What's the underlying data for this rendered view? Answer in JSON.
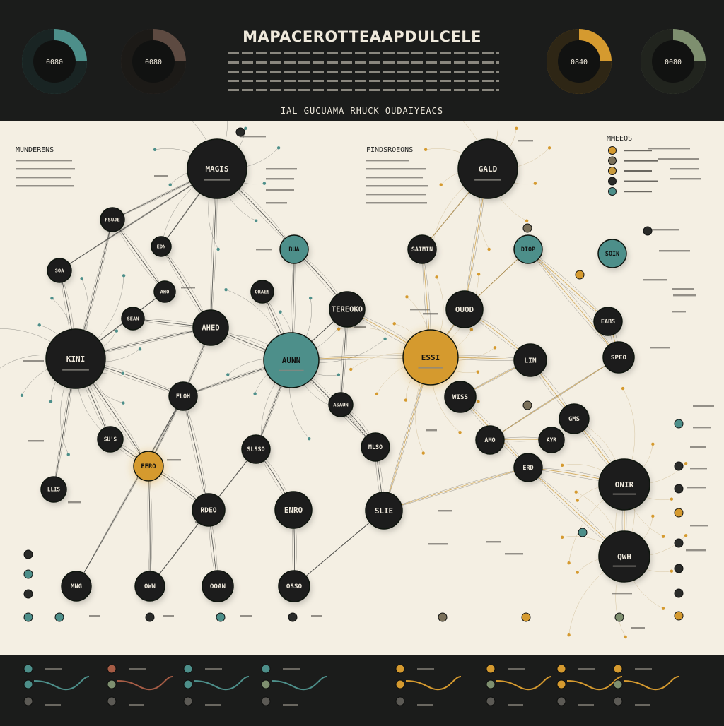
{
  "header": {
    "title": "MAPACEROTTEAAPDULCELE",
    "subtitle": "IAL GUCUAMA RHUCK OUDAIYEACS",
    "badges": [
      {
        "label": "0080",
        "color": "#4d8f8a"
      },
      {
        "label": "0080",
        "color": "#5d4a41"
      },
      {
        "label": "0840",
        "color": "#d59a2f"
      },
      {
        "label": "0080",
        "color": "#7e8f6f"
      }
    ]
  },
  "panels": {
    "left_title": "MUNDERENS",
    "center_title": "FINDSROEONS",
    "legend_title": "MMEEOS",
    "legend": [
      {
        "color": "#d59a2f"
      },
      {
        "color": "#7a705a"
      },
      {
        "color": "#c99a3c"
      },
      {
        "color": "#2a2b29"
      },
      {
        "color": "#4d8f8a"
      }
    ]
  },
  "palette": {
    "node": "#1c1d1c",
    "teal": "#4d8f8a",
    "orange": "#d59a2f",
    "olive": "#7e8f6f",
    "rust": "#a65c45",
    "paper": "#f4efe3"
  },
  "nodes": [
    {
      "id": "n1",
      "label": "MAGIS",
      "color": "dark"
    },
    {
      "id": "n2",
      "label": "FSUJE",
      "color": "dark"
    },
    {
      "id": "n3",
      "label": "EDN",
      "color": "dark"
    },
    {
      "id": "n4",
      "label": "SOA",
      "color": "dark"
    },
    {
      "id": "n5",
      "label": "AHO",
      "color": "dark"
    },
    {
      "id": "n6",
      "label": "BUA",
      "color": "teal"
    },
    {
      "id": "n7",
      "label": "SEAN",
      "color": "dark"
    },
    {
      "id": "n8",
      "label": "ORAES",
      "color": "dark"
    },
    {
      "id": "n9",
      "label": "AHED",
      "color": "dark"
    },
    {
      "id": "n10",
      "label": "KINI",
      "color": "dark"
    },
    {
      "id": "n11",
      "label": "TEREOKO",
      "color": "dark"
    },
    {
      "id": "n12",
      "label": "AUNN",
      "color": "teal"
    },
    {
      "id": "n13",
      "label": "FLOH",
      "color": "dark"
    },
    {
      "id": "n14",
      "label": "ASAUN",
      "color": "dark"
    },
    {
      "id": "n15",
      "label": "SU'S",
      "color": "dark"
    },
    {
      "id": "n16",
      "label": "SLSSO",
      "color": "dark"
    },
    {
      "id": "n17",
      "label": "MLSO",
      "color": "dark"
    },
    {
      "id": "n18",
      "label": "EERO",
      "color": "orange"
    },
    {
      "id": "n19",
      "label": "LLIS",
      "color": "dark"
    },
    {
      "id": "n20",
      "label": "RDEO",
      "color": "dark"
    },
    {
      "id": "n21",
      "label": "ENRO",
      "color": "dark"
    },
    {
      "id": "n22",
      "label": "SLIE",
      "color": "dark"
    },
    {
      "id": "n23",
      "label": "MNG",
      "color": "dark"
    },
    {
      "id": "n24",
      "label": "OWN",
      "color": "dark"
    },
    {
      "id": "n25",
      "label": "OOAN",
      "color": "dark"
    },
    {
      "id": "n26",
      "label": "OSSO",
      "color": "dark"
    },
    {
      "id": "n27",
      "label": "ESSI",
      "color": "orange"
    },
    {
      "id": "n28",
      "label": "SAIMIN",
      "color": "dark"
    },
    {
      "id": "n29",
      "label": "GALD",
      "color": "dark"
    },
    {
      "id": "n30",
      "label": "OUOD",
      "color": "dark"
    },
    {
      "id": "n31",
      "label": "DIOP",
      "color": "teal"
    },
    {
      "id": "n32",
      "label": "SOIN",
      "color": "teal"
    },
    {
      "id": "n33",
      "label": "EABS",
      "color": "dark"
    },
    {
      "id": "n34",
      "label": "LIN",
      "color": "dark"
    },
    {
      "id": "n35",
      "label": "SPEO",
      "color": "dark"
    },
    {
      "id": "n36",
      "label": "WISS",
      "color": "dark"
    },
    {
      "id": "n37",
      "label": "AMO",
      "color": "dark"
    },
    {
      "id": "n38",
      "label": "AYR",
      "color": "dark"
    },
    {
      "id": "n39",
      "label": "GMS",
      "color": "dark"
    },
    {
      "id": "n40",
      "label": "ERD",
      "color": "dark"
    },
    {
      "id": "n41",
      "label": "ONIR",
      "color": "dark"
    },
    {
      "id": "n42",
      "label": "QWH",
      "color": "dark"
    }
  ],
  "footer": {
    "charts": [
      {
        "color": "#4d8f8a"
      },
      {
        "color": "#a65c45"
      },
      {
        "color": "#4d8f8a"
      },
      {
        "color": "#4d8f8a"
      },
      {
        "color": "#d59a2f"
      },
      {
        "color": "#d59a2f"
      },
      {
        "color": "#d59a2f"
      },
      {
        "color": "#d59a2f"
      }
    ]
  }
}
